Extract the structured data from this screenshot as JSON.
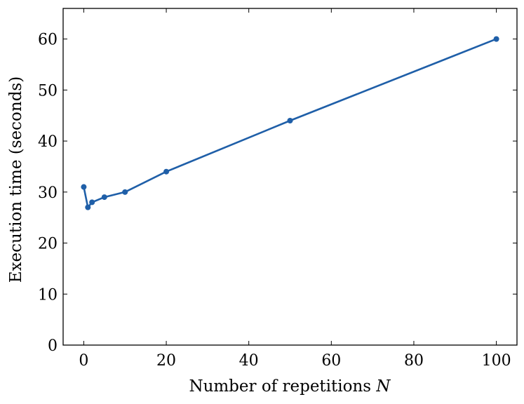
{
  "chart_data": {
    "type": "line",
    "title": "",
    "xlabel": "Number of repetitions",
    "xlabel_var": "N",
    "ylabel": "Execution time (seconds)",
    "xlim": [
      -5,
      105
    ],
    "ylim": [
      0,
      66
    ],
    "xticks": [
      0,
      20,
      40,
      60,
      80,
      100
    ],
    "yticks": [
      0,
      10,
      20,
      30,
      40,
      50,
      60
    ],
    "grid": false,
    "tick_direction": "in",
    "series": [
      {
        "color": "#1f5fa8",
        "marker": "circle",
        "x": [
          0,
          1,
          2,
          5,
          10,
          20,
          50,
          100
        ],
        "y": [
          31,
          27,
          28,
          29,
          30,
          34,
          44,
          60
        ]
      }
    ]
  }
}
